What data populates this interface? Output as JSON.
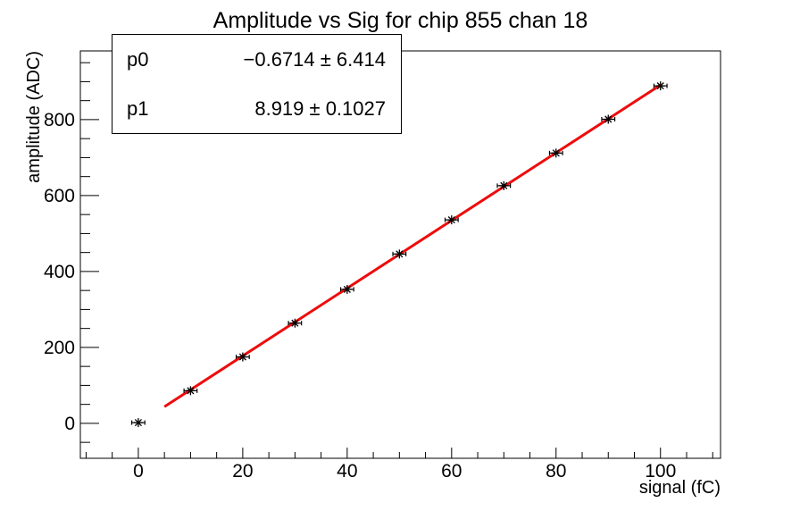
{
  "title": "Amplitude vs Sig for chip 855 chan 18",
  "stats": {
    "rows": [
      {
        "name": "p0",
        "value": "−0.6714 ± 6.414"
      },
      {
        "name": "p1",
        "value": "8.919 ± 0.1027"
      }
    ]
  },
  "chart_data": {
    "type": "scatter",
    "title": "Amplitude vs Sig for chip 855 chan 18",
    "xlabel": "signal (fC)",
    "ylabel": "amplitude (ADC)",
    "xlim": [
      -11.1,
      111.5
    ],
    "ylim": [
      -92,
      981
    ],
    "x_ticks": [
      0,
      20,
      40,
      60,
      80,
      100
    ],
    "y_ticks": [
      0,
      200,
      400,
      600,
      800
    ],
    "x_minor_step": 5,
    "y_minor_step": 50,
    "grid": false,
    "legend": "none",
    "series": [
      {
        "name": "data-points",
        "type": "scatter",
        "marker": "asterisk",
        "color": "#000000",
        "x": [
          0,
          10,
          20,
          30,
          40,
          50,
          60,
          70,
          80,
          90,
          100
        ],
        "y": [
          2,
          86,
          175,
          264,
          353,
          446,
          536,
          626,
          712,
          801,
          889
        ],
        "x_err": 1.25
      },
      {
        "name": "linear-fit",
        "type": "line",
        "color": "#ee0c0c",
        "fit_p0": -0.6714,
        "fit_p1": 8.919,
        "x_range": [
          5,
          100
        ]
      }
    ]
  },
  "colors": {
    "background": "#ffffff",
    "frame": "#000000",
    "marker": "#000000",
    "fit_line": "#ee0c0c"
  }
}
